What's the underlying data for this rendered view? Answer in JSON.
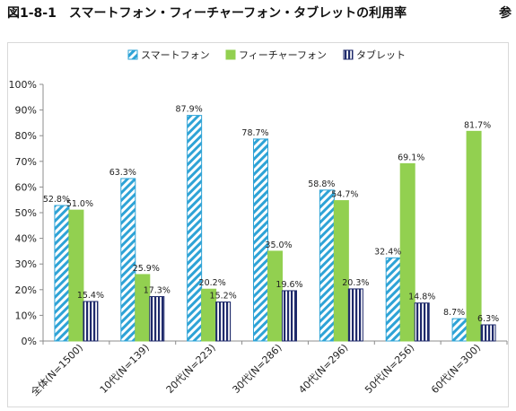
{
  "header": {
    "figure_number": "図1-8-1",
    "title": "スマートフォン・フィーチャーフォン・タブレットの利用率",
    "corner_text": "参"
  },
  "chart_data": {
    "type": "bar",
    "title": "スマートフォン・フィーチャーフォン・タブレットの利用率",
    "categories": [
      "全体(N=1500)",
      "10代(N=139)",
      "20代(N=223)",
      "30代(N=286)",
      "40代(N=296)",
      "50代(N=256)",
      "60代(N=300)"
    ],
    "series": [
      {
        "name": "スマートフォン",
        "values": [
          52.8,
          63.3,
          87.9,
          78.7,
          58.8,
          32.4,
          8.7
        ],
        "color": "#2ea3d6",
        "pattern": "diagonal-stripes"
      },
      {
        "name": "フィーチャーフォン",
        "values": [
          51.0,
          25.9,
          20.2,
          35.0,
          54.7,
          69.1,
          81.7
        ],
        "color": "#92d050",
        "pattern": "solid"
      },
      {
        "name": "タブレット",
        "values": [
          15.4,
          17.3,
          15.2,
          19.6,
          20.3,
          14.8,
          6.3
        ],
        "color": "#1f2a6b",
        "pattern": "vertical-stripes"
      }
    ],
    "yticks": [
      "0%",
      "10%",
      "20%",
      "30%",
      "40%",
      "50%",
      "60%",
      "70%",
      "80%",
      "90%",
      "100%"
    ],
    "ylim": [
      0,
      100
    ],
    "value_suffix": "%",
    "xlabel": "",
    "ylabel": "",
    "grid": false,
    "legend_position": "top-center"
  }
}
